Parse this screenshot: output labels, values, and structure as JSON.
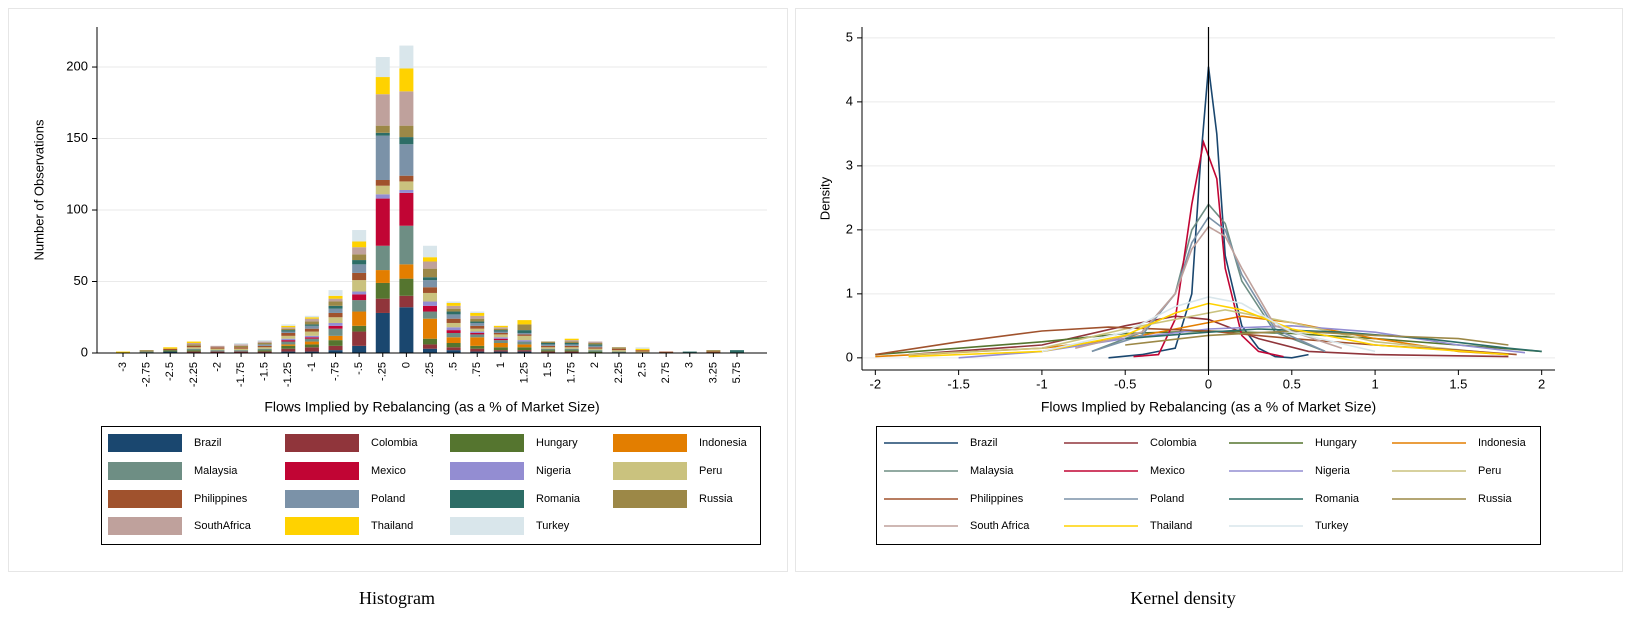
{
  "chart_data": [
    {
      "type": "bar",
      "stacked": true,
      "caption": "Histogram",
      "xlabel": "Flows Implied by Rebalancing (as a % of Market Size)",
      "ylabel": "Number of Observations",
      "categories": [
        "-3",
        "-2.75",
        "-2.5",
        "-2.25",
        "-2",
        "-1.75",
        "-1.5",
        "-1.25",
        "-1",
        "-.75",
        "-.5",
        "-.25",
        "0",
        ".25",
        ".5",
        ".75",
        "1",
        "1.25",
        "1.5",
        "1.75",
        "2",
        "2.25",
        "2.5",
        "2.75",
        "3",
        "3.25",
        "5.75"
      ],
      "ylim": [
        0,
        228
      ],
      "yticks": [
        0,
        50,
        100,
        150,
        200
      ],
      "grid": true,
      "legend_position": "bottom",
      "series": [
        {
          "name": "Brazil",
          "color": "#1a476f",
          "values": [
            0,
            0,
            1,
            0,
            0,
            0,
            0,
            1,
            1,
            2,
            5,
            28,
            32,
            3,
            2,
            1,
            1,
            1,
            0,
            0,
            0,
            0,
            0,
            0,
            0,
            0,
            0
          ]
        },
        {
          "name": "Colombia",
          "color": "#90353b",
          "values": [
            0,
            0,
            0,
            1,
            1,
            1,
            1,
            2,
            3,
            3,
            10,
            10,
            8,
            3,
            2,
            2,
            1,
            1,
            1,
            1,
            0,
            0,
            0,
            0,
            0,
            0,
            0
          ]
        },
        {
          "name": "Hungary",
          "color": "#55752f",
          "values": [
            0,
            0,
            1,
            1,
            0,
            0,
            1,
            2,
            2,
            4,
            4,
            11,
            12,
            4,
            3,
            2,
            2,
            2,
            1,
            1,
            1,
            0,
            0,
            0,
            0,
            0,
            0
          ]
        },
        {
          "name": "Indonesia",
          "color": "#e37e00",
          "values": [
            0,
            0,
            0,
            0,
            0,
            0,
            0,
            1,
            2,
            3,
            10,
            9,
            10,
            14,
            4,
            6,
            3,
            2,
            0,
            0,
            0,
            0,
            0,
            0,
            0,
            0,
            0
          ]
        },
        {
          "name": "Malaysia",
          "color": "#6e8e84",
          "values": [
            0,
            1,
            0,
            1,
            1,
            1,
            1,
            2,
            2,
            5,
            8,
            17,
            27,
            5,
            3,
            2,
            2,
            2,
            1,
            1,
            1,
            1,
            0,
            0,
            0,
            0,
            0
          ]
        },
        {
          "name": "Mexico",
          "color": "#c10534",
          "values": [
            0,
            0,
            0,
            0,
            0,
            0,
            0,
            1,
            1,
            2,
            4,
            33,
            23,
            4,
            2,
            1,
            1,
            0,
            0,
            0,
            0,
            0,
            0,
            0,
            0,
            0,
            0
          ]
        },
        {
          "name": "Nigeria",
          "color": "#938dd2",
          "values": [
            0,
            0,
            0,
            0,
            0,
            0,
            0,
            1,
            1,
            2,
            2,
            3,
            2,
            3,
            2,
            1,
            1,
            1,
            0,
            0,
            0,
            0,
            0,
            0,
            0,
            0,
            0
          ]
        },
        {
          "name": "Peru",
          "color": "#cac27e",
          "values": [
            0,
            0,
            0,
            1,
            1,
            1,
            1,
            2,
            3,
            4,
            8,
            6,
            6,
            6,
            3,
            2,
            2,
            3,
            1,
            1,
            1,
            1,
            1,
            0,
            0,
            0,
            0
          ]
        },
        {
          "name": "Philippines",
          "color": "#a0522d",
          "values": [
            0,
            0,
            1,
            1,
            1,
            1,
            1,
            2,
            2,
            3,
            5,
            4,
            4,
            4,
            3,
            2,
            1,
            1,
            1,
            1,
            1,
            1,
            1,
            1,
            0,
            1,
            0
          ]
        },
        {
          "name": "Poland",
          "color": "#7b92a8",
          "values": [
            0,
            0,
            0,
            0,
            0,
            0,
            1,
            1,
            2,
            3,
            6,
            31,
            22,
            5,
            3,
            2,
            1,
            1,
            1,
            1,
            1,
            0,
            0,
            0,
            0,
            0,
            0
          ]
        },
        {
          "name": "Romania",
          "color": "#2d6d66",
          "values": [
            0,
            0,
            0,
            0,
            0,
            0,
            0,
            1,
            1,
            2,
            3,
            2,
            5,
            2,
            2,
            1,
            1,
            2,
            1,
            1,
            1,
            0,
            0,
            0,
            1,
            0,
            2
          ]
        },
        {
          "name": "Russia",
          "color": "#9c8847",
          "values": [
            0,
            1,
            0,
            1,
            0,
            1,
            1,
            1,
            2,
            3,
            4,
            5,
            8,
            6,
            2,
            2,
            1,
            4,
            1,
            1,
            1,
            1,
            0,
            0,
            0,
            1,
            0
          ]
        },
        {
          "name": "SouthAfrica",
          "color": "#bfa19c",
          "values": [
            0,
            0,
            0,
            1,
            1,
            1,
            1,
            1,
            2,
            2,
            5,
            22,
            24,
            5,
            2,
            2,
            1,
            0,
            0,
            1,
            1,
            0,
            0,
            0,
            0,
            0,
            0
          ]
        },
        {
          "name": "Thailand",
          "color": "#ffd200",
          "values": [
            1,
            0,
            1,
            1,
            0,
            0,
            0,
            1,
            1,
            2,
            4,
            12,
            16,
            3,
            2,
            2,
            1,
            3,
            0,
            1,
            0,
            0,
            1,
            0,
            0,
            0,
            0
          ]
        },
        {
          "name": "Turkey",
          "color": "#d9e6eb",
          "values": [
            0,
            0,
            0,
            0,
            0,
            1,
            1,
            1,
            1,
            4,
            8,
            14,
            16,
            8,
            1,
            1,
            0,
            0,
            0,
            0,
            0,
            0,
            1,
            0,
            0,
            0,
            0
          ]
        }
      ]
    },
    {
      "type": "line",
      "caption": "Kernel density",
      "xlabel": "Flows Implied by Rebalancing (as a % of Market Size)",
      "ylabel": "Density",
      "xlim": [
        -2.08,
        2.08
      ],
      "xticks": [
        -2,
        -1.5,
        -1,
        -0.5,
        0,
        0.5,
        1,
        1.5,
        2
      ],
      "ylim": [
        -0.19,
        5.17
      ],
      "yticks": [
        0,
        1,
        2,
        3,
        4,
        5
      ],
      "grid": true,
      "xline": 0,
      "legend_position": "bottom",
      "series": [
        {
          "name": "Brazil",
          "color": "#1a476f",
          "x": [
            -0.6,
            -0.4,
            -0.3,
            -0.2,
            -0.1,
            -0.05,
            0,
            0.05,
            0.1,
            0.2,
            0.3,
            0.4,
            0.5,
            0.6
          ],
          "values": [
            0,
            0.05,
            0.1,
            0.15,
            1.0,
            3.0,
            4.55,
            3.5,
            1.6,
            0.5,
            0.15,
            0.02,
            0,
            0.05
          ]
        },
        {
          "name": "Colombia",
          "color": "#90353b",
          "x": [
            -1.8,
            -1,
            -0.5,
            -0.2,
            0,
            0.3,
            0.6,
            1,
            1.8
          ],
          "values": [
            0.05,
            0.2,
            0.5,
            0.65,
            0.6,
            0.3,
            0.1,
            0.05,
            0.02
          ]
        },
        {
          "name": "Hungary",
          "color": "#55752f",
          "x": [
            -2,
            -1,
            -0.5,
            0,
            0.5,
            1,
            1.5,
            2
          ],
          "values": [
            0.05,
            0.25,
            0.38,
            0.42,
            0.38,
            0.3,
            0.2,
            0.1
          ]
        },
        {
          "name": "Indonesia",
          "color": "#e37e00",
          "x": [
            -2,
            -1,
            -0.5,
            0,
            0.2,
            0.5,
            1,
            1.5,
            1.8
          ],
          "values": [
            0.02,
            0.15,
            0.3,
            0.55,
            0.65,
            0.55,
            0.3,
            0.1,
            0.05
          ]
        },
        {
          "name": "Malaysia",
          "color": "#6e8e84",
          "x": [
            -0.7,
            -0.4,
            -0.2,
            -0.1,
            0,
            0.1,
            0.2,
            0.4,
            0.7
          ],
          "values": [
            0.1,
            0.4,
            1.0,
            2.0,
            2.4,
            2.1,
            1.2,
            0.4,
            0.1
          ]
        },
        {
          "name": "Mexico",
          "color": "#c10534",
          "x": [
            -0.45,
            -0.3,
            -0.2,
            -0.1,
            -0.03,
            0.05,
            0.1,
            0.2,
            0.3,
            0.45
          ],
          "values": [
            0.02,
            0.05,
            0.6,
            2.4,
            3.37,
            2.8,
            1.4,
            0.35,
            0.1,
            0.02
          ]
        },
        {
          "name": "Nigeria",
          "color": "#938dd2",
          "x": [
            -1.5,
            -1,
            -0.5,
            0,
            0.5,
            1,
            1.5,
            1.9
          ],
          "values": [
            0,
            0.1,
            0.3,
            0.45,
            0.5,
            0.4,
            0.2,
            0.08
          ]
        },
        {
          "name": "Peru",
          "color": "#cac27e",
          "x": [
            -1.8,
            -1,
            -0.5,
            0,
            0.1,
            0.5,
            1,
            1.8
          ],
          "values": [
            0.05,
            0.15,
            0.45,
            0.7,
            0.75,
            0.55,
            0.25,
            0.05
          ]
        },
        {
          "name": "Philippines",
          "color": "#a0522d",
          "x": [
            -2,
            -1.5,
            -1,
            -0.6,
            0,
            0.5,
            1,
            1.5,
            1.85
          ],
          "values": [
            0.05,
            0.25,
            0.42,
            0.48,
            0.42,
            0.3,
            0.2,
            0.12,
            0.05
          ]
        },
        {
          "name": "Poland",
          "color": "#7b92a8",
          "x": [
            -0.7,
            -0.4,
            -0.2,
            -0.1,
            0,
            0.1,
            0.2,
            0.4,
            0.7
          ],
          "values": [
            0.1,
            0.35,
            1.0,
            1.8,
            2.2,
            2.0,
            1.3,
            0.45,
            0.1
          ]
        },
        {
          "name": "Romania",
          "color": "#2d6d66",
          "x": [
            -0.5,
            0,
            0.3,
            0.8,
            1.3,
            1.8,
            2
          ],
          "values": [
            0.3,
            0.4,
            0.45,
            0.4,
            0.3,
            0.15,
            0.1
          ]
        },
        {
          "name": "Russia",
          "color": "#9c8847",
          "x": [
            -0.5,
            0,
            0.5,
            1,
            1.5,
            1.8
          ],
          "values": [
            0.2,
            0.35,
            0.42,
            0.35,
            0.3,
            0.2
          ]
        },
        {
          "name": "South Africa",
          "color": "#bfa19c",
          "x": [
            -0.8,
            -0.4,
            -0.2,
            -0.1,
            0,
            0.1,
            0.2,
            0.4,
            0.8
          ],
          "values": [
            0.15,
            0.4,
            1.0,
            1.7,
            2.05,
            1.9,
            1.4,
            0.5,
            0.15
          ]
        },
        {
          "name": "Thailand",
          "color": "#ffd200",
          "x": [
            -1.8,
            -1,
            -0.5,
            -0.2,
            0,
            0.2,
            0.5,
            1,
            1.8
          ],
          "values": [
            0.02,
            0.1,
            0.35,
            0.7,
            0.85,
            0.75,
            0.45,
            0.2,
            0.05
          ]
        },
        {
          "name": "Turkey",
          "color": "#d9e6eb",
          "x": [
            -1,
            -0.5,
            -0.2,
            0,
            0.2,
            0.5,
            1
          ],
          "values": [
            0.1,
            0.4,
            0.8,
            0.95,
            0.85,
            0.4,
            0.1
          ]
        }
      ]
    }
  ]
}
